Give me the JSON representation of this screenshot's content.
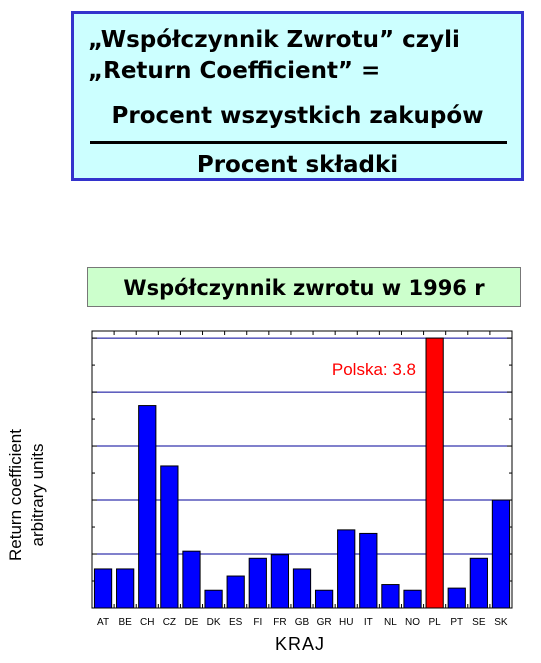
{
  "formula": {
    "line1": "„Współczynnik Zwrotu” czyli",
    "line2": "„Return Coefficient” =",
    "numerator": "Procent wszystkich zakupów",
    "denominator": "Procent składki"
  },
  "chart_data": {
    "type": "bar",
    "title": "Współczynnik zwrotu w 1996 r",
    "xlabel": "KRAJ",
    "ylabel_lines": [
      "Return coefficient",
      "arbitrary units"
    ],
    "categories": [
      "AT",
      "BE",
      "CH",
      "CZ",
      "DE",
      "DK",
      "ES",
      "FI",
      "FR",
      "GB",
      "GR",
      "HU",
      "IT",
      "NL",
      "NO",
      "PL",
      "PT",
      "SE",
      "SK"
    ],
    "values": [
      0.55,
      0.55,
      2.85,
      2.0,
      0.8,
      0.25,
      0.45,
      0.7,
      0.75,
      0.55,
      0.25,
      1.1,
      1.05,
      0.33,
      0.25,
      3.8,
      0.28,
      0.7,
      1.52
    ],
    "ylim": [
      0,
      3.9
    ],
    "gridlines": [
      0.76,
      1.52,
      2.28,
      3.04,
      3.8
    ],
    "grid": true,
    "highlight": {
      "category": "PL",
      "label": "Polska: 3.8"
    },
    "colors": {
      "bar": "#0000ff",
      "highlight": "#ff0000",
      "grid": "#000099",
      "annotation": "#ff0000"
    }
  }
}
